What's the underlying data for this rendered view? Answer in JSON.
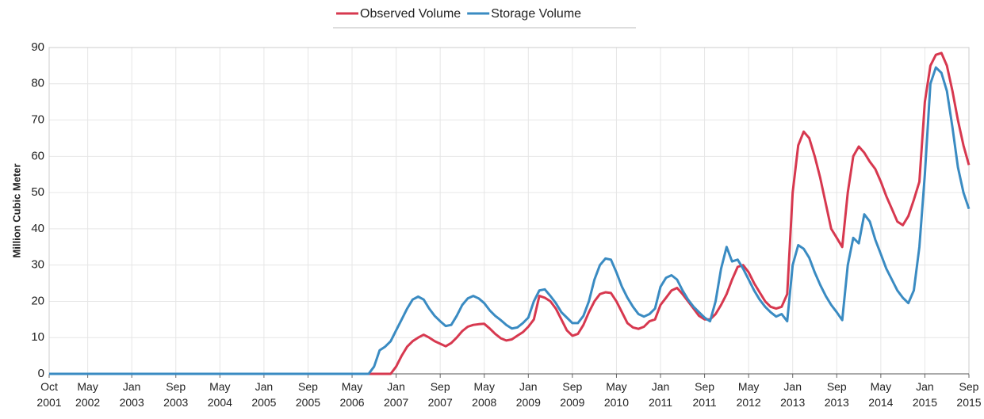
{
  "chart_data": {
    "type": "line",
    "y_label": "Million Cubic Meter",
    "xlim": [
      "2001-10",
      "2015-09"
    ],
    "xticks": [
      {
        "value": "2001-10",
        "label": "Oct 2001"
      },
      {
        "value": "2002-05",
        "label": "May 2002"
      },
      {
        "value": "2003-01",
        "label": "Jan 2003"
      },
      {
        "value": "2003-09",
        "label": "Sep 2003"
      },
      {
        "value": "2004-05",
        "label": "May 2004"
      },
      {
        "value": "2005-01",
        "label": "Jan 2005"
      },
      {
        "value": "2005-09",
        "label": "Sep 2005"
      },
      {
        "value": "2006-05",
        "label": "May 2006"
      },
      {
        "value": "2007-01",
        "label": "Jan 2007"
      },
      {
        "value": "2007-09",
        "label": "Sep 2007"
      },
      {
        "value": "2008-05",
        "label": "May 2008"
      },
      {
        "value": "2009-01",
        "label": "Jan 2009"
      },
      {
        "value": "2009-09",
        "label": "Sep 2009"
      },
      {
        "value": "2010-05",
        "label": "May 2010"
      },
      {
        "value": "2011-01",
        "label": "Jan 2011"
      },
      {
        "value": "2011-09",
        "label": "Sep 2011"
      },
      {
        "value": "2012-05",
        "label": "May 2012"
      },
      {
        "value": "2013-01",
        "label": "Jan 2013"
      },
      {
        "value": "2013-09",
        "label": "Sep 2013"
      },
      {
        "value": "2014-05",
        "label": "May 2014"
      },
      {
        "value": "2015-01",
        "label": "Jan 2015"
      },
      {
        "value": "2015-09",
        "label": "Sep 2015"
      }
    ],
    "ylim": [
      0,
      90
    ],
    "yticks": [
      0,
      10,
      20,
      30,
      40,
      50,
      60,
      70,
      80,
      90
    ],
    "grid": true,
    "legend": "top",
    "x": [
      "2001-10",
      "2006-06",
      "2006-07",
      "2006-08",
      "2006-09",
      "2006-10",
      "2006-11",
      "2006-12",
      "2007-01",
      "2007-02",
      "2007-03",
      "2007-04",
      "2007-05",
      "2007-06",
      "2007-07",
      "2007-08",
      "2007-09",
      "2007-10",
      "2007-11",
      "2007-12",
      "2008-01",
      "2008-02",
      "2008-03",
      "2008-04",
      "2008-05",
      "2008-06",
      "2008-07",
      "2008-08",
      "2008-09",
      "2008-10",
      "2008-11",
      "2008-12",
      "2009-01",
      "2009-02",
      "2009-03",
      "2009-04",
      "2009-05",
      "2009-06",
      "2009-07",
      "2009-08",
      "2009-09",
      "2009-10",
      "2009-11",
      "2009-12",
      "2010-01",
      "2010-02",
      "2010-03",
      "2010-04",
      "2010-05",
      "2010-06",
      "2010-07",
      "2010-08",
      "2010-09",
      "2010-10",
      "2010-11",
      "2010-12",
      "2011-01",
      "2011-02",
      "2011-03",
      "2011-04",
      "2011-05",
      "2011-06",
      "2011-07",
      "2011-08",
      "2011-09",
      "2011-10",
      "2011-11",
      "2011-12",
      "2012-01",
      "2012-02",
      "2012-03",
      "2012-04",
      "2012-05",
      "2012-06",
      "2012-07",
      "2012-08",
      "2012-09",
      "2012-10",
      "2012-11",
      "2012-12",
      "2013-01",
      "2013-02",
      "2013-03",
      "2013-04",
      "2013-05",
      "2013-06",
      "2013-07",
      "2013-08",
      "2013-09",
      "2013-10",
      "2013-11",
      "2013-12",
      "2014-01",
      "2014-02",
      "2014-03",
      "2014-04",
      "2014-05",
      "2014-06",
      "2014-07",
      "2014-08",
      "2014-09",
      "2014-10",
      "2014-11",
      "2014-12",
      "2015-01",
      "2015-02",
      "2015-03",
      "2015-04",
      "2015-05",
      "2015-06",
      "2015-07",
      "2015-08",
      "2015-09"
    ],
    "series": [
      {
        "name": "Observed Volume",
        "color": "#d7384f",
        "values": [
          0,
          0,
          0,
          0,
          0,
          0,
          0,
          0,
          2,
          5,
          7.5,
          9,
          10,
          10.8,
          10,
          9,
          8.3,
          7.6,
          8.5,
          10,
          11.8,
          13,
          13.5,
          13.7,
          13.8,
          12.5,
          11,
          9.8,
          9.2,
          9.5,
          10.5,
          11.5,
          13,
          15,
          21.5,
          21,
          20,
          18,
          15,
          12,
          10.5,
          11,
          13.5,
          17,
          20,
          22,
          22.5,
          22.3,
          20,
          17,
          14,
          12.8,
          12.4,
          13,
          14.5,
          15,
          19,
          21,
          23,
          23.7,
          22,
          20,
          18,
          16,
          15,
          15,
          16.5,
          19,
          22,
          26,
          29.5,
          30,
          28,
          25,
          22.5,
          20,
          18.5,
          18,
          18.5,
          22,
          50,
          63,
          66.8,
          65,
          60,
          54,
          47,
          40,
          37.5,
          35,
          50,
          60,
          62.7,
          61,
          58.5,
          56.5,
          53,
          49,
          45.5,
          42,
          41,
          43.5,
          48,
          53,
          75,
          85,
          88,
          88.5,
          85,
          78,
          70,
          63,
          57.6
        ]
      },
      {
        "name": "Storage Volume",
        "color": "#3a8bc2",
        "values": [
          0,
          0,
          0,
          0,
          2,
          6.5,
          7.5,
          9,
          12,
          15,
          18,
          20.5,
          21.3,
          20.5,
          18,
          16,
          14.5,
          13.2,
          13.5,
          16,
          19,
          20.8,
          21.5,
          20.8,
          19.5,
          17.5,
          16,
          14.8,
          13.5,
          12.5,
          12.8,
          14,
          15.5,
          20,
          23,
          23.3,
          21.5,
          19.5,
          17,
          15.5,
          14,
          14,
          16,
          20,
          26,
          30,
          31.8,
          31.5,
          28,
          24,
          21,
          18.5,
          16.5,
          15.8,
          16.5,
          18,
          24,
          26.5,
          27.2,
          26,
          23,
          20.5,
          18.5,
          17,
          15.5,
          14.5,
          20,
          29,
          35,
          31,
          31.5,
          29,
          26,
          23,
          20.5,
          18.5,
          17,
          15.8,
          16.5,
          14.5,
          30,
          35.5,
          34.5,
          32,
          28,
          24.5,
          21.5,
          19,
          17,
          14.8,
          30,
          37.5,
          36,
          44,
          42,
          37,
          33,
          29,
          26,
          23,
          21,
          19.5,
          23,
          35,
          55,
          80,
          84.5,
          83,
          78,
          68,
          57,
          50,
          45.5
        ]
      }
    ]
  }
}
